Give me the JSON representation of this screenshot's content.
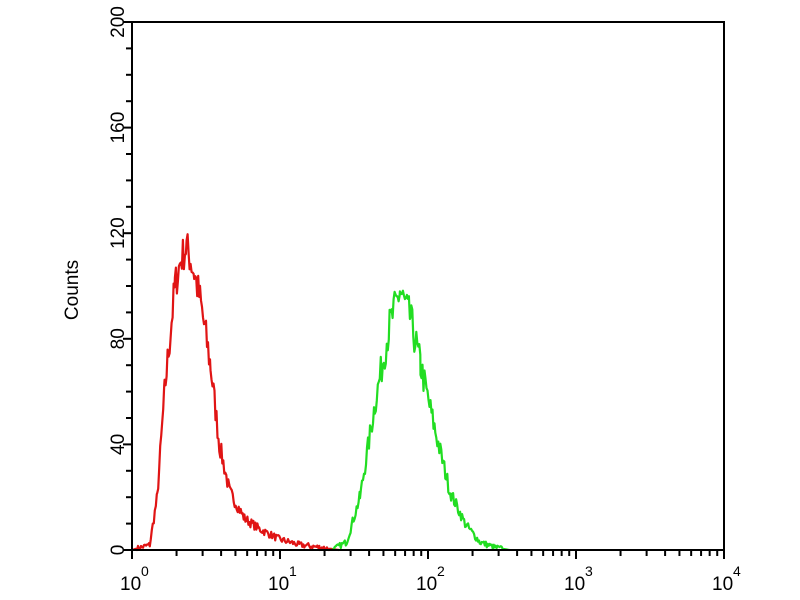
{
  "chart_data": {
    "type": "line",
    "title": "",
    "xlabel": "",
    "ylabel": "Counts",
    "x_scale": "log",
    "xlim": [
      1,
      10000
    ],
    "ylim": [
      0,
      200
    ],
    "grid": false,
    "y_ticks": [
      "0",
      "40",
      "80",
      "120",
      "160",
      "200"
    ],
    "x_ticks": [
      {
        "base": "10",
        "exp": "0"
      },
      {
        "base": "10",
        "exp": "1"
      },
      {
        "base": "10",
        "exp": "2"
      },
      {
        "base": "10",
        "exp": "3"
      },
      {
        "base": "10",
        "exp": "4"
      }
    ],
    "series": [
      {
        "color": "#e01414",
        "x": [
          1.0,
          1.32,
          1.48,
          1.66,
          1.95,
          2.14,
          2.34,
          2.63,
          2.88,
          3.39,
          3.89,
          4.57,
          5.75,
          7.24,
          10,
          13.5,
          18.6,
          25
        ],
        "y": [
          0,
          2,
          20,
          60,
          100,
          110,
          115,
          105,
          95,
          70,
          40,
          22,
          12,
          8,
          4,
          2,
          1,
          0
        ]
      },
      {
        "color": "#22dd22",
        "x": [
          22.4,
          28.2,
          34.7,
          43.7,
          55,
          64.6,
          75.9,
          89,
          112,
          141,
          178,
          224,
          282,
          355
        ],
        "y": [
          0,
          3,
          20,
          55,
          85,
          98,
          88,
          70,
          45,
          22,
          10,
          3,
          1,
          0
        ]
      }
    ]
  }
}
